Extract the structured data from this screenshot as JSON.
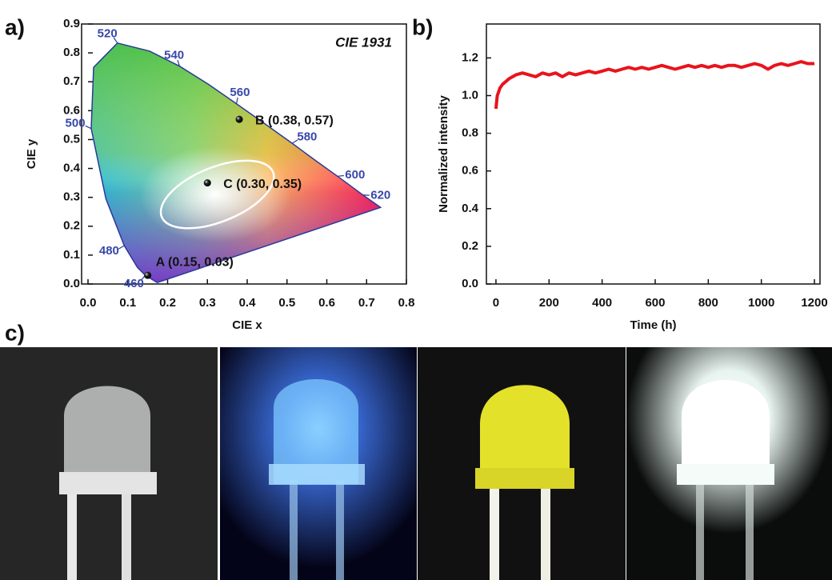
{
  "panel_labels": [
    "a)",
    "b)",
    "c)"
  ],
  "chart_data": [
    {
      "type": "cie",
      "title": "CIE 1931",
      "xlabel": "CIE x",
      "ylabel": "CIE y",
      "xlim": [
        0,
        0.8
      ],
      "ylim": [
        0,
        0.9
      ],
      "xticks": [
        {
          "value": 0,
          "label": "0.0"
        },
        0.1,
        0.2,
        0.3,
        0.4,
        0.5,
        0.6,
        0.7,
        0.8
      ],
      "yticks": [
        {
          "value": 0,
          "label": "0.0"
        },
        0.1,
        0.2,
        0.3,
        0.4,
        0.5,
        0.6,
        0.7,
        0.8,
        0.9
      ],
      "locus": {
        "x": [
          0.174,
          0.144,
          0.124,
          0.091,
          0.045,
          0.008,
          0.014,
          0.074,
          0.155,
          0.23,
          0.302,
          0.373,
          0.444,
          0.513,
          0.575,
          0.627,
          0.691,
          0.735
        ],
        "y": [
          0.005,
          0.03,
          0.058,
          0.133,
          0.295,
          0.538,
          0.75,
          0.834,
          0.806,
          0.754,
          0.692,
          0.624,
          0.555,
          0.487,
          0.424,
          0.373,
          0.308,
          0.265
        ]
      },
      "wavelength_labels": [
        {
          "label": "460",
          "x": 0.144,
          "y": 0.03
        },
        {
          "label": "480",
          "x": 0.091,
          "y": 0.133
        },
        {
          "label": "500",
          "x": 0.008,
          "y": 0.538
        },
        {
          "label": "520",
          "x": 0.074,
          "y": 0.834
        },
        {
          "label": "540",
          "x": 0.23,
          "y": 0.754
        },
        {
          "label": "560",
          "x": 0.373,
          "y": 0.624
        },
        {
          "label": "580",
          "x": 0.513,
          "y": 0.487
        },
        {
          "label": "600",
          "x": 0.627,
          "y": 0.373
        },
        {
          "label": "620",
          "x": 0.691,
          "y": 0.308
        }
      ],
      "points": {
        "labels": [
          "A (0.15, 0.03)",
          "B (0.38, 0.57)",
          "C (0.30, 0.35)"
        ],
        "x": [
          0.15,
          0.38,
          0.3
        ],
        "y": [
          0.03,
          0.57,
          0.35
        ]
      }
    },
    {
      "type": "line",
      "xlabel": "Time (h)",
      "ylabel": "Normalized intensity",
      "xlim": [
        -36,
        1221
      ],
      "ylim": [
        0,
        1.38
      ],
      "xticks": [
        0,
        200,
        400,
        600,
        800,
        1000,
        1200
      ],
      "yticks": [
        {
          "value": 0,
          "label": "0.0"
        },
        0.2,
        0.4,
        0.6,
        0.8,
        {
          "value": 1,
          "label": "1.0"
        },
        1.2
      ],
      "series": [
        {
          "color": "#e8141c",
          "x": [
            0,
            5,
            10,
            15,
            25,
            50,
            75,
            100,
            125,
            150,
            175,
            200,
            225,
            250,
            275,
            300,
            325,
            350,
            375,
            400,
            425,
            450,
            475,
            500,
            525,
            550,
            575,
            600,
            625,
            650,
            675,
            700,
            725,
            750,
            775,
            800,
            825,
            850,
            875,
            900,
            925,
            950,
            975,
            1000,
            1025,
            1050,
            1075,
            1100,
            1125,
            1150,
            1175,
            1200
          ],
          "values": [
            0.93,
            1.0,
            1.02,
            1.04,
            1.06,
            1.09,
            1.11,
            1.12,
            1.11,
            1.1,
            1.12,
            1.11,
            1.12,
            1.1,
            1.12,
            1.11,
            1.12,
            1.13,
            1.12,
            1.13,
            1.14,
            1.13,
            1.14,
            1.15,
            1.14,
            1.15,
            1.14,
            1.15,
            1.16,
            1.15,
            1.14,
            1.15,
            1.16,
            1.15,
            1.16,
            1.15,
            1.16,
            1.15,
            1.16,
            1.16,
            1.15,
            1.16,
            1.17,
            1.16,
            1.14,
            1.16,
            1.17,
            1.16,
            1.17,
            1.18,
            1.17,
            1.17
          ]
        }
      ]
    }
  ]
}
